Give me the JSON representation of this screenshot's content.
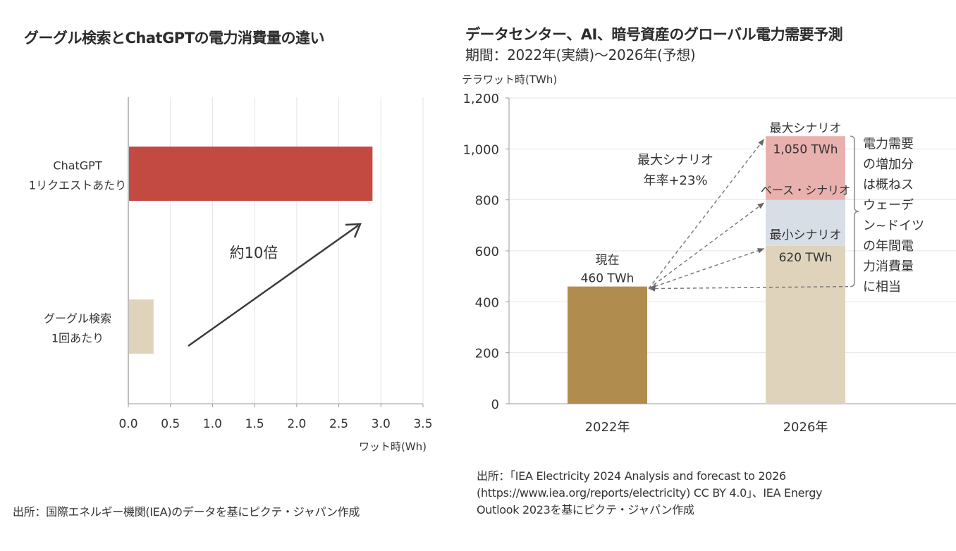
{
  "chart_data": [
    {
      "type": "bar",
      "orientation": "horizontal",
      "title": "グーグル検索とChatGPTの電力消費量の違い",
      "categories": [
        {
          "id": "chatgpt",
          "label_lines": [
            "ChatGPT",
            "1リクエストあたり"
          ]
        },
        {
          "id": "google",
          "label_lines": [
            "グーグル検索",
            "1回あたり"
          ]
        }
      ],
      "values": [
        2.9,
        0.3
      ],
      "colors": [
        "#c24a41",
        "#dfd3bb"
      ],
      "xlabel": "ワット時(Wh)",
      "xlim": [
        0,
        3.5
      ],
      "xticks": [
        "0.0",
        "0.5",
        "1.0",
        "1.5",
        "2.0",
        "2.5",
        "3.0",
        "3.5"
      ],
      "grid": true,
      "annotation": {
        "text": "約10倍",
        "arrow": "from google toward chatgpt"
      },
      "source": "出所：国際エネルギー機関(IEA)のデータを基にピクテ・ジャパン作成"
    },
    {
      "type": "bar",
      "stacked": true,
      "title": "データセンター、AI、暗号資産のグローバル電力需要予測",
      "subtitle": "期間：2022年(実績)～2026年(予想)",
      "ylabel": "テラワット時(TWh)",
      "ylim": [
        0,
        1200
      ],
      "yticks": [
        "0",
        "200",
        "400",
        "600",
        "800",
        "1,000",
        "1,200"
      ],
      "categories": [
        "2022年",
        "2026年"
      ],
      "series": [
        {
          "name": "実績 / 最小シナリオ",
          "values": [
            460,
            620
          ],
          "colors": [
            "#b08d4e",
            "#dfd3bb"
          ]
        },
        {
          "name": "ベース・シナリオ増分",
          "values": [
            0,
            180
          ],
          "color": "#d8dee6"
        },
        {
          "name": "最大シナリオ増分",
          "values": [
            0,
            250
          ],
          "color": "#e9b1ae"
        }
      ],
      "scenario_levels": {
        "current": 460,
        "min": 620,
        "base": 800,
        "max": 1050
      },
      "grid": true,
      "annotations": {
        "current_label": "現在",
        "current_value": "460 TWh",
        "max_label": "最大シナリオ",
        "max_value": "1,050 TWh",
        "base_label": "ベース・シナリオ",
        "min_label": "最小シナリオ",
        "min_value": "620 TWh",
        "growth_line1": "最大シナリオ",
        "growth_line2": "年率+23%",
        "bracket_note_lines": [
          "電力需要",
          "の増加分",
          "は概ねス",
          "ウェーデ",
          "ン~ドイツ",
          "の年間電",
          "力消費量",
          "に相当"
        ]
      },
      "source_lines": [
        "出所：「IEA Electricity 2024 Analysis and forecast to 2026",
        "(https://www.iea.org/reports/electricity) CC BY 4.0」、IEA Energy",
        "Outlook 2023を基にピクテ・ジャパン作成"
      ]
    }
  ],
  "colors": {
    "text": "#333333",
    "grid": "#e3e3e3",
    "axis": "#999999",
    "arrow": "#3a3a3a",
    "dashed": "#7a7a7a"
  }
}
